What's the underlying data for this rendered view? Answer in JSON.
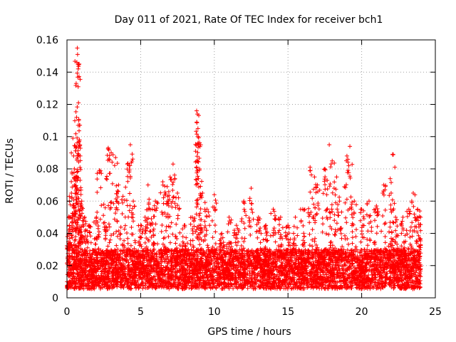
{
  "chart_data": {
    "type": "scatter",
    "title": "Day 011 of 2021, Rate Of TEC Index for receiver bch1",
    "xlabel": "GPS time / hours",
    "ylabel": "ROTI / TECUs",
    "xlim": [
      0,
      25
    ],
    "ylim": [
      0,
      0.16
    ],
    "x_ticks": [
      0,
      5,
      10,
      15,
      20,
      25
    ],
    "x_tick_labels": [
      "0",
      "5",
      "10",
      "15",
      "20",
      "25"
    ],
    "y_ticks": [
      0,
      0.02,
      0.04,
      0.06,
      0.08,
      0.1,
      0.12,
      0.14,
      0.16
    ],
    "y_tick_labels": [
      "0",
      "0.02",
      "0.04",
      "0.06",
      "0.08",
      "0.1",
      "0.12",
      "0.14",
      "0.16"
    ],
    "grid": true,
    "marker": "+",
    "marker_color": "#ff0000",
    "series": [
      {
        "name": "ROTI",
        "baseline_band": [
          0.01,
          0.03
        ],
        "x_range": [
          0,
          24
        ],
        "points": [
          [
            0.1,
            0.03
          ],
          [
            0.2,
            0.05
          ],
          [
            0.3,
            0.065
          ],
          [
            0.4,
            0.099
          ],
          [
            0.45,
            0.088
          ],
          [
            0.5,
            0.08
          ],
          [
            0.6,
            0.075
          ],
          [
            0.65,
            0.112
          ],
          [
            0.7,
            0.155
          ],
          [
            0.72,
            0.151
          ],
          [
            0.74,
            0.145
          ],
          [
            0.76,
            0.142
          ],
          [
            0.78,
            0.121
          ],
          [
            0.8,
            0.11
          ],
          [
            0.85,
            0.098
          ],
          [
            0.9,
            0.088
          ],
          [
            1.0,
            0.06
          ],
          [
            1.2,
            0.05
          ],
          [
            1.5,
            0.045
          ],
          [
            2.0,
            0.05
          ],
          [
            2.2,
            0.079
          ],
          [
            2.5,
            0.058
          ],
          [
            2.8,
            0.093
          ],
          [
            3.0,
            0.09
          ],
          [
            3.3,
            0.087
          ],
          [
            3.5,
            0.07
          ],
          [
            3.8,
            0.063
          ],
          [
            4.1,
            0.083
          ],
          [
            4.3,
            0.095
          ],
          [
            4.5,
            0.06
          ],
          [
            5.0,
            0.045
          ],
          [
            5.3,
            0.05
          ],
          [
            5.5,
            0.07
          ],
          [
            5.8,
            0.055
          ],
          [
            6.0,
            0.06
          ],
          [
            6.5,
            0.072
          ],
          [
            6.8,
            0.069
          ],
          [
            7.0,
            0.075
          ],
          [
            7.2,
            0.083
          ],
          [
            7.5,
            0.065
          ],
          [
            8.0,
            0.045
          ],
          [
            8.5,
            0.05
          ],
          [
            8.8,
            0.116
          ],
          [
            8.85,
            0.114
          ],
          [
            8.9,
            0.1
          ],
          [
            8.95,
            0.095
          ],
          [
            9.0,
            0.08
          ],
          [
            9.2,
            0.065
          ],
          [
            9.5,
            0.055
          ],
          [
            10.0,
            0.064
          ],
          [
            10.5,
            0.04
          ],
          [
            11.0,
            0.05
          ],
          [
            11.5,
            0.045
          ],
          [
            12.0,
            0.06
          ],
          [
            12.5,
            0.068
          ],
          [
            13.0,
            0.05
          ],
          [
            13.5,
            0.045
          ],
          [
            14.0,
            0.055
          ],
          [
            14.5,
            0.05
          ],
          [
            15.0,
            0.045
          ],
          [
            15.5,
            0.05
          ],
          [
            16.0,
            0.055
          ],
          [
            16.5,
            0.081
          ],
          [
            16.8,
            0.075
          ],
          [
            17.0,
            0.07
          ],
          [
            17.5,
            0.08
          ],
          [
            17.8,
            0.095
          ],
          [
            18.0,
            0.085
          ],
          [
            18.3,
            0.075
          ],
          [
            18.5,
            0.06
          ],
          [
            19.0,
            0.088
          ],
          [
            19.2,
            0.094
          ],
          [
            19.5,
            0.06
          ],
          [
            20.0,
            0.055
          ],
          [
            20.5,
            0.06
          ],
          [
            21.0,
            0.057
          ],
          [
            21.5,
            0.07
          ],
          [
            22.0,
            0.065
          ],
          [
            22.1,
            0.089
          ],
          [
            22.3,
            0.05
          ],
          [
            22.8,
            0.05
          ],
          [
            23.2,
            0.055
          ],
          [
            23.5,
            0.065
          ],
          [
            23.8,
            0.055
          ],
          [
            24.0,
            0.05
          ]
        ]
      }
    ]
  }
}
